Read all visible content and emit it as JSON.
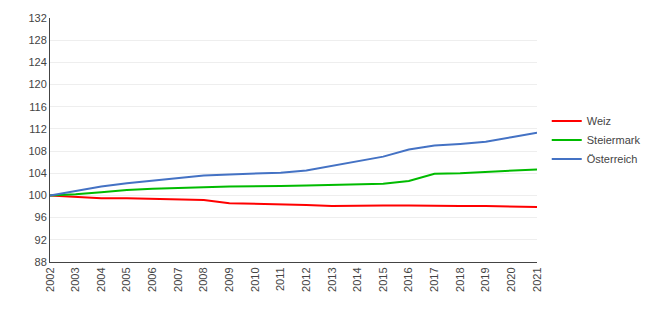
{
  "chart_data": {
    "type": "line",
    "x": [
      2002,
      2003,
      2004,
      2005,
      2006,
      2007,
      2008,
      2009,
      2010,
      2011,
      2012,
      2013,
      2014,
      2015,
      2016,
      2017,
      2018,
      2019,
      2020,
      2021
    ],
    "series": [
      {
        "name": "Weiz",
        "color": "#ff0000",
        "values": [
          100.0,
          99.7,
          99.5,
          99.5,
          99.4,
          99.3,
          99.2,
          98.6,
          98.5,
          98.5,
          98.3,
          98.1,
          98.2,
          98.2,
          98.2,
          98.1,
          98.1,
          98.1,
          98.0,
          97.9
        ]
      },
      {
        "name": "Steiermark",
        "color": "#00bb00",
        "values": [
          100.0,
          100.2,
          100.6,
          101.0,
          101.2,
          101.4,
          101.5,
          101.6,
          101.6,
          101.7,
          101.8,
          101.9,
          102.0,
          102.1,
          102.6,
          103.9,
          104.0,
          104.2,
          104.4,
          104.7
        ]
      },
      {
        "name": "Österreich",
        "color": "#4472c4",
        "values": [
          100.0,
          100.8,
          101.6,
          102.2,
          102.7,
          103.1,
          103.6,
          103.8,
          103.9,
          104.1,
          104.5,
          105.3,
          106.2,
          107.0,
          108.3,
          109.0,
          109.3,
          109.7,
          110.5,
          111.3
        ]
      }
    ],
    "xlim": [
      2002,
      2021
    ],
    "xticks": [
      2002,
      2003,
      2004,
      2005,
      2006,
      2007,
      2008,
      2009,
      2010,
      2011,
      2012,
      2013,
      2014,
      2015,
      2016,
      2017,
      2018,
      2019,
      2020,
      2021
    ],
    "ylim": [
      88,
      132
    ],
    "yticks": [
      88,
      92,
      96,
      100,
      104,
      108,
      112,
      116,
      120,
      124,
      128,
      132
    ],
    "grid": "y",
    "legend": "right"
  }
}
